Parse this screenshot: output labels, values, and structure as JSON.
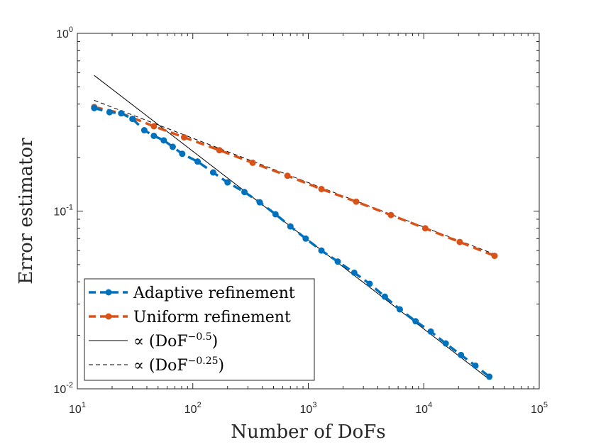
{
  "chart_data": {
    "type": "line",
    "xscale": "log",
    "yscale": "log",
    "xlim": [
      10,
      100000
    ],
    "ylim": [
      0.01,
      1
    ],
    "xlabel": "Number of DoFs",
    "ylabel": "Error estimator",
    "grid": false,
    "legend_position": "bottom-left",
    "x_ticks": [
      {
        "value": 10,
        "base": "10",
        "exp": "1"
      },
      {
        "value": 100,
        "base": "10",
        "exp": "2"
      },
      {
        "value": 1000,
        "base": "10",
        "exp": "3"
      },
      {
        "value": 10000,
        "base": "10",
        "exp": "4"
      },
      {
        "value": 100000,
        "base": "10",
        "exp": "5"
      }
    ],
    "y_ticks": [
      {
        "value": 0.01,
        "base": "10",
        "exp": "-2"
      },
      {
        "value": 0.1,
        "base": "10",
        "exp": "-1"
      },
      {
        "value": 1,
        "base": "10",
        "exp": "0"
      }
    ],
    "series": [
      {
        "name": "Adaptive refinement",
        "legend_text": "Adaptive refinement",
        "color": "#0072BD",
        "style": "dashed-marker",
        "x": [
          14,
          19,
          24,
          30,
          38,
          46,
          56,
          67,
          81,
          110,
          150,
          200,
          280,
          380,
          520,
          700,
          950,
          1300,
          1800,
          2500,
          3400,
          4600,
          6200,
          8500,
          11500,
          15500,
          21000,
          28000,
          37000
        ],
        "y": [
          0.38,
          0.36,
          0.355,
          0.33,
          0.285,
          0.265,
          0.25,
          0.23,
          0.21,
          0.19,
          0.165,
          0.145,
          0.128,
          0.112,
          0.096,
          0.082,
          0.07,
          0.06,
          0.052,
          0.045,
          0.039,
          0.033,
          0.028,
          0.024,
          0.021,
          0.018,
          0.0155,
          0.0135,
          0.0117
        ]
      },
      {
        "name": "Uniform refinement",
        "legend_text": "Uniform refinement",
        "color": "#D95319",
        "style": "dashed-marker",
        "x": [
          14,
          24,
          46,
          84,
          170,
          330,
          660,
          1300,
          2600,
          5200,
          10300,
          20500,
          41000
        ],
        "y": [
          0.385,
          0.355,
          0.3,
          0.26,
          0.22,
          0.187,
          0.158,
          0.133,
          0.113,
          0.095,
          0.08,
          0.067,
          0.056
        ]
      },
      {
        "name": "DoF^-0.5 reference",
        "legend_prefix": "∝ (DoF",
        "legend_exp": "−0.5",
        "legend_suffix": ")",
        "color": "#000000",
        "style": "solid",
        "x": [
          14,
          37000
        ],
        "y": [
          0.58,
          0.0113
        ]
      },
      {
        "name": "DoF^-0.25 reference",
        "legend_prefix": "∝ (DoF",
        "legend_exp": "−0.25",
        "legend_suffix": ")",
        "color": "#000000",
        "style": "dashed",
        "x": [
          14,
          41000
        ],
        "y": [
          0.42,
          0.0572
        ]
      }
    ]
  }
}
